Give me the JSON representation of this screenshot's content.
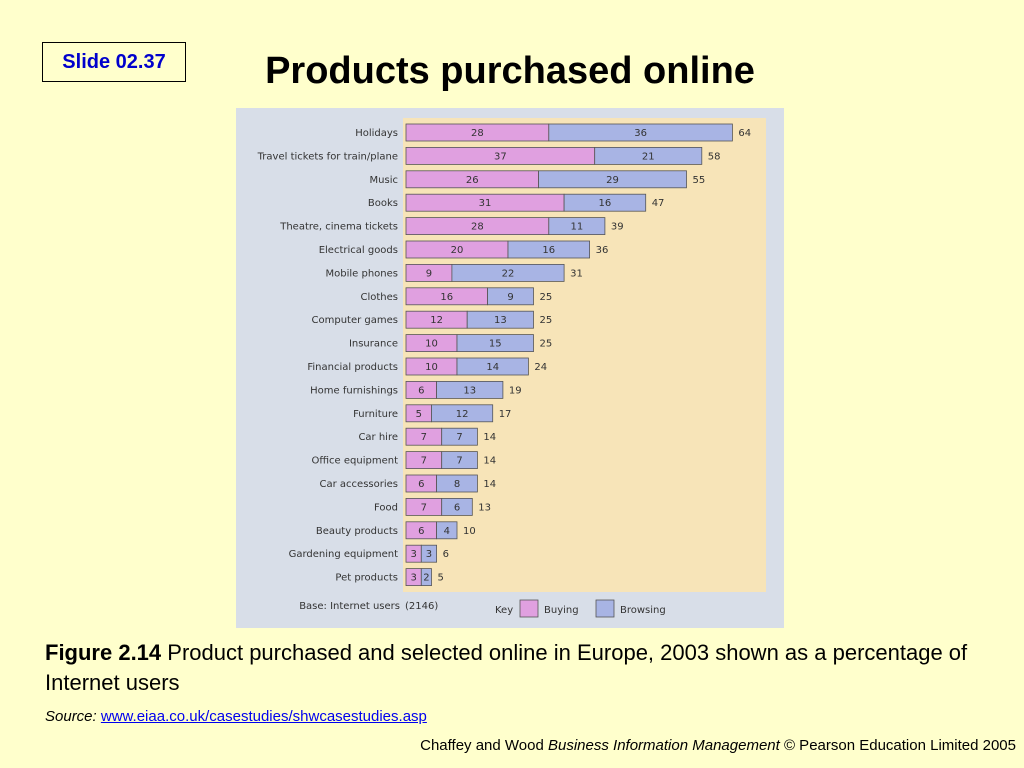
{
  "slide": {
    "badge": "Slide 02.37",
    "title": "Products purchased online"
  },
  "chart_data": {
    "type": "bar",
    "stacked": true,
    "orientation": "horizontal",
    "categories": [
      "Holidays",
      "Travel tickets for train/plane",
      "Music",
      "Books",
      "Theatre, cinema tickets",
      "Electrical goods",
      "Mobile phones",
      "Clothes",
      "Computer games",
      "Insurance",
      "Financial products",
      "Home furnishings",
      "Furniture",
      "Car hire",
      "Office equipment",
      "Car accessories",
      "Food",
      "Beauty products",
      "Gardening equipment",
      "Pet products"
    ],
    "series": [
      {
        "name": "Buying",
        "color": "#e0a0e0",
        "values": [
          28,
          37,
          26,
          31,
          28,
          20,
          9,
          16,
          12,
          10,
          10,
          6,
          5,
          7,
          7,
          6,
          7,
          6,
          3,
          3
        ]
      },
      {
        "name": "Browsing",
        "color": "#a8b4e4",
        "values": [
          36,
          21,
          29,
          16,
          11,
          16,
          22,
          9,
          13,
          15,
          14,
          13,
          12,
          7,
          7,
          8,
          6,
          4,
          3,
          2
        ]
      }
    ],
    "totals": [
      64,
      58,
      55,
      47,
      39,
      36,
      31,
      25,
      25,
      25,
      24,
      19,
      17,
      14,
      14,
      14,
      13,
      10,
      6,
      5
    ],
    "base_label": "Base: Internet users",
    "base_value": "(2146)",
    "legend": {
      "key_label": "Key",
      "position": "bottom"
    },
    "xlim": [
      0,
      64
    ],
    "grid": false,
    "panel_color": "#d8dee8",
    "plot_color": "#f7e4b8"
  },
  "caption": {
    "figure_label": "Figure 2.14",
    "text": " Product purchased and selected online in Europe, 2003 shown as a percentage of Internet users"
  },
  "source": {
    "label": "Source:",
    "link_text": "www.eiaa.co.uk/casestudies/shwcasestudies.asp"
  },
  "footer": {
    "prefix": "Chaffey and Wood ",
    "book": "Business Information Management",
    "suffix": " © Pearson Education Limited 2005"
  }
}
